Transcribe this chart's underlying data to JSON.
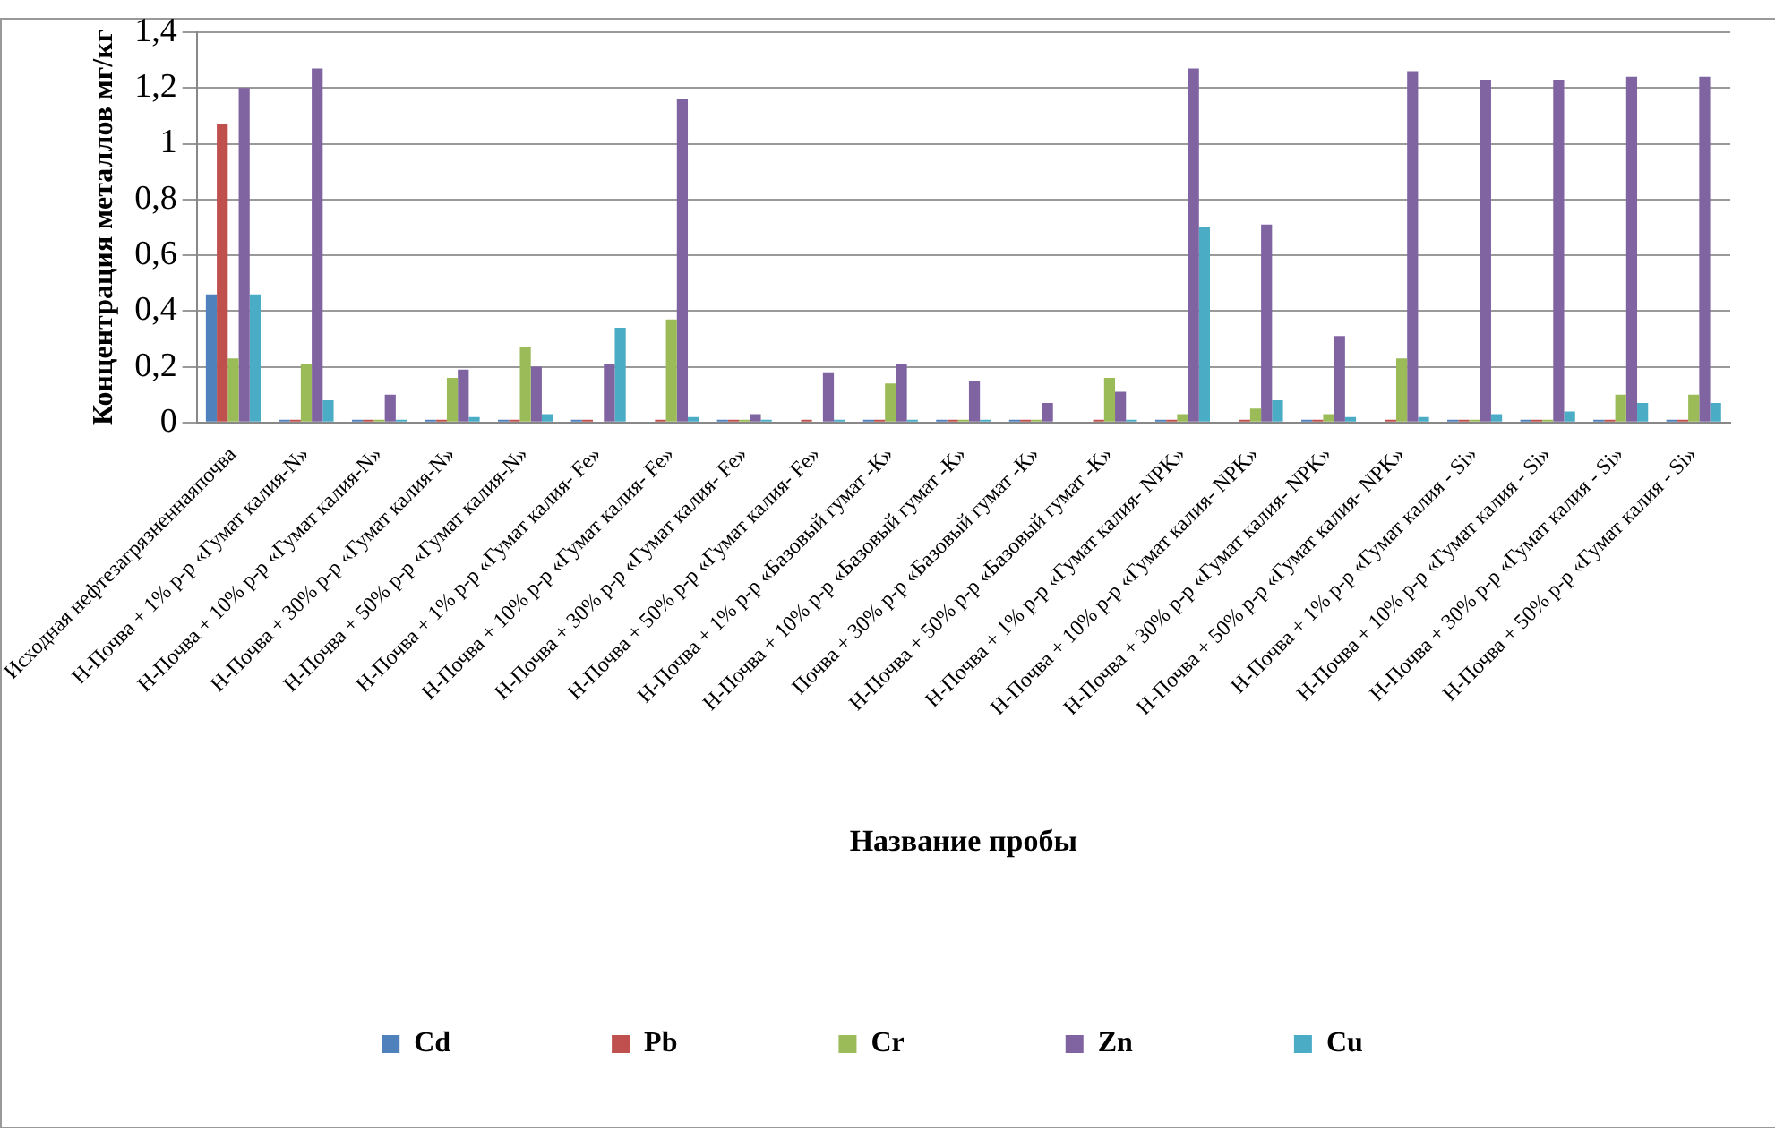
{
  "chart_data": {
    "type": "bar",
    "xlabel": "Название пробы",
    "ylabel": "Концентрация металлов мг/кг",
    "categories": [
      "Исходная нефтезагрязненнаяпочва",
      "Н-Почва + 1% р-р «Гумат калия-N»",
      "Н-Почва + 10% р-р «Гумат калия-N»",
      "Н-Почва + 30% р-р «Гумат калия-N»",
      "Н-Почва + 50% р-р «Гумат калия-N»",
      "Н-Почва + 1% р-р «Гумат калия- Fe»",
      "Н-Почва + 10% р-р «Гумат калия- Fe»",
      "Н-Почва + 30% р-р «Гумат калия- Fe»",
      "Н-Почва + 50% р-р «Гумат калия- Fe»",
      "Н-Почва + 1% р-р «Базовый гумат -К»",
      "Н-Почва + 10% р-р «Базовый гумат -К»",
      "Почва + 30% р-р «Базовый гумат -К»",
      "Н-Почва + 50% р-р «Базовый гумат -К»",
      "Н-Почва + 1% р-р «Гумат калия- NPK»",
      "Н-Почва + 10% р-р «Гумат калия- NPK»",
      "Н-Почва + 30% р-р «Гумат калия- NPK»",
      "Н-Почва + 50% р-р «Гумат калия- NPK»",
      "Н-Почва + 1% р-р «Гумат калия - Si»",
      "Н-Почва + 10% р-р «Гумат калия - Si»",
      "Н-Почва + 30% р-р «Гумат калия - Si»",
      "Н-Почва + 50% р-р «Гумат калия - Si»"
    ],
    "series": [
      {
        "name": "Cd",
        "color": "#4f81bd",
        "values": [
          0.46,
          0.01,
          0.01,
          0.01,
          0.01,
          0.01,
          0,
          0.01,
          0,
          0.01,
          0.01,
          0.01,
          0,
          0.01,
          0,
          0.01,
          0,
          0.01,
          0.01,
          0.01,
          0.01
        ]
      },
      {
        "name": "Pb",
        "color": "#c0504d",
        "values": [
          1.07,
          0.01,
          0.01,
          0.01,
          0.01,
          0.01,
          0.01,
          0.01,
          0.01,
          0.01,
          0.01,
          0.01,
          0.01,
          0.01,
          0.01,
          0.01,
          0.01,
          0.01,
          0.01,
          0.01,
          0.01
        ]
      },
      {
        "name": "Cr",
        "color": "#9bbb59",
        "values": [
          0.23,
          0.21,
          0.01,
          0.16,
          0.27,
          0,
          0.37,
          0.01,
          0,
          0.14,
          0.01,
          0.01,
          0.16,
          0.03,
          0.05,
          0.03,
          0.23,
          0.01,
          0.01,
          0.1,
          0.1
        ]
      },
      {
        "name": "Zn",
        "color": "#8064a2",
        "values": [
          1.2,
          1.27,
          0.1,
          0.19,
          0.2,
          0.21,
          1.16,
          0.03,
          0.18,
          0.21,
          0.15,
          0.07,
          0.11,
          1.27,
          0.71,
          0.31,
          1.26,
          1.23,
          1.23,
          1.24,
          1.24
        ]
      },
      {
        "name": "Cu",
        "color": "#4bacc6",
        "values": [
          0.46,
          0.08,
          0.01,
          0.02,
          0.03,
          0.34,
          0.02,
          0.01,
          0.01,
          0.01,
          0.01,
          0,
          0.01,
          0.7,
          0.08,
          0.02,
          0.02,
          0.03,
          0.04,
          0.07,
          0.07
        ]
      }
    ],
    "ylim": [
      0,
      1.4
    ],
    "yticks": [
      {
        "value": 0,
        "label": "0"
      },
      {
        "value": 0.2,
        "label": "0,2"
      },
      {
        "value": 0.4,
        "label": "0,4"
      },
      {
        "value": 0.6,
        "label": "0,6"
      },
      {
        "value": 0.8,
        "label": "0,8"
      },
      {
        "value": 1,
        "label": "1"
      },
      {
        "value": 1.2,
        "label": "1,2"
      },
      {
        "value": 1.4,
        "label": "1,4"
      }
    ],
    "grid": "y",
    "legend": "bottom"
  }
}
